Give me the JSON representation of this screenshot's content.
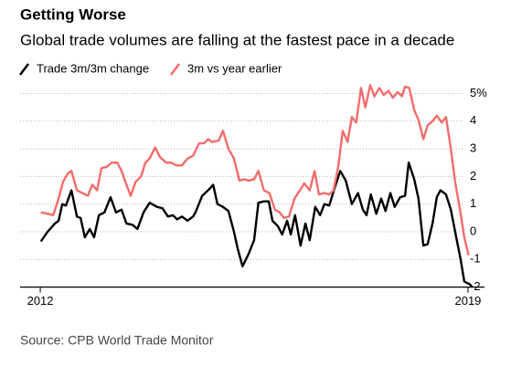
{
  "chart_data": {
    "type": "line",
    "title": "Getting Worse",
    "subtitle": "Global trade volumes are falling at the fastest pace in a decade",
    "source": "Source: CPB World Trade Monitor",
    "series": [
      {
        "name": "Trade 3m/3m change",
        "color": "#000000",
        "x": [
          2012.01,
          2012.12,
          2012.24,
          2012.3,
          2012.36,
          2012.42,
          2012.51,
          2012.6,
          2012.66,
          2012.73,
          2012.81,
          2012.88,
          2012.96,
          2013.05,
          2013.15,
          2013.24,
          2013.33,
          2013.41,
          2013.51,
          2013.59,
          2013.69,
          2013.79,
          2013.91,
          2014.0,
          2014.09,
          2014.17,
          2014.24,
          2014.32,
          2014.41,
          2014.5,
          2014.54,
          2014.65,
          2014.77,
          2014.83,
          2014.9,
          2014.99,
          2015.08,
          2015.17,
          2015.23,
          2015.31,
          2015.41,
          2015.5,
          2015.57,
          2015.66,
          2015.74,
          2015.8,
          2015.89,
          2015.96,
          2016.04,
          2016.1,
          2016.17,
          2016.26,
          2016.34,
          2016.41,
          2016.5,
          2016.58,
          2016.65,
          2016.73,
          2016.82,
          2016.91,
          2017.0,
          2017.1,
          2017.2,
          2017.28,
          2017.34,
          2017.41,
          2017.5,
          2017.58,
          2017.65,
          2017.73,
          2017.8,
          2017.89,
          2017.97,
          2018.03,
          2018.12,
          2018.19,
          2018.27,
          2018.34,
          2018.42,
          2018.49,
          2018.55,
          2018.64,
          2018.72,
          2018.79,
          2018.88,
          2018.94,
          2019.03,
          2019.07
        ],
        "values": [
          -0.35,
          0.0,
          0.3,
          0.4,
          1.0,
          0.95,
          1.5,
          0.55,
          0.5,
          -0.2,
          0.1,
          -0.2,
          0.6,
          0.7,
          1.25,
          0.7,
          0.8,
          0.3,
          0.25,
          0.1,
          0.7,
          1.05,
          0.9,
          0.85,
          0.55,
          0.6,
          0.45,
          0.55,
          0.4,
          0.55,
          0.7,
          1.3,
          1.55,
          1.7,
          1.0,
          0.9,
          0.75,
          0.0,
          -0.6,
          -1.25,
          -0.8,
          -0.3,
          1.05,
          1.1,
          1.1,
          0.4,
          0.2,
          -0.1,
          0.4,
          -0.1,
          0.6,
          -0.5,
          0.3,
          -0.3,
          0.9,
          0.6,
          1.0,
          0.95,
          1.6,
          2.2,
          1.85,
          1.0,
          1.4,
          0.8,
          0.6,
          1.35,
          0.65,
          1.2,
          0.75,
          1.4,
          0.9,
          1.25,
          1.3,
          2.5,
          1.9,
          1.2,
          -0.5,
          -0.45,
          0.3,
          1.25,
          1.5,
          1.35,
          0.8,
          0.0,
          -1.0,
          -1.8,
          -1.9,
          -2.0
        ]
      },
      {
        "name": "3m vs year earlier",
        "color": "#f26d6b",
        "x": [
          2012.01,
          2012.13,
          2012.21,
          2012.3,
          2012.37,
          2012.45,
          2012.51,
          2012.6,
          2012.69,
          2012.78,
          2012.85,
          2012.93,
          2013.0,
          2013.09,
          2013.17,
          2013.26,
          2013.33,
          2013.41,
          2013.48,
          2013.56,
          2013.65,
          2013.72,
          2013.79,
          2013.88,
          2013.96,
          2014.06,
          2014.14,
          2014.23,
          2014.32,
          2014.41,
          2014.5,
          2014.6,
          2014.68,
          2014.75,
          2014.81,
          2014.92,
          2014.99,
          2015.08,
          2015.17,
          2015.26,
          2015.34,
          2015.41,
          2015.5,
          2015.57,
          2015.66,
          2015.75,
          2015.84,
          2015.92,
          2015.99,
          2016.07,
          2016.16,
          2016.25,
          2016.32,
          2016.41,
          2016.49,
          2016.56,
          2016.65,
          2016.73,
          2016.8,
          2016.88,
          2016.95,
          2017.03,
          2017.1,
          2017.17,
          2017.25,
          2017.32,
          2017.4,
          2017.47,
          2017.55,
          2017.62,
          2017.7,
          2017.77,
          2017.85,
          2017.92,
          2017.97,
          2018.04,
          2018.12,
          2018.19,
          2018.27,
          2018.34,
          2018.42,
          2018.49,
          2018.57,
          2018.64,
          2018.72,
          2018.79,
          2018.87,
          2018.94,
          2019.01
        ],
        "values": [
          0.7,
          0.65,
          0.6,
          1.2,
          1.8,
          2.1,
          2.2,
          1.5,
          1.4,
          1.3,
          1.7,
          1.5,
          2.3,
          2.35,
          2.5,
          2.5,
          2.2,
          1.7,
          1.3,
          1.8,
          2.0,
          2.5,
          2.65,
          3.05,
          2.7,
          2.5,
          2.5,
          2.4,
          2.4,
          2.65,
          2.75,
          3.2,
          3.2,
          3.35,
          3.25,
          3.3,
          3.65,
          3.0,
          2.65,
          1.85,
          1.9,
          1.85,
          1.9,
          2.2,
          1.5,
          1.4,
          0.8,
          0.7,
          0.5,
          0.55,
          1.2,
          1.5,
          1.75,
          1.5,
          2.2,
          1.35,
          1.4,
          1.35,
          1.5,
          2.4,
          3.65,
          3.25,
          4.15,
          3.95,
          5.2,
          4.5,
          5.3,
          4.9,
          5.2,
          4.95,
          5.1,
          4.85,
          5.05,
          4.9,
          5.25,
          5.2,
          4.4,
          4.05,
          3.35,
          3.85,
          4.0,
          4.2,
          3.95,
          4.15,
          3.0,
          1.8,
          0.8,
          -0.2,
          -0.85
        ]
      }
    ],
    "xlim": [
      2011.67,
      2019.27
    ],
    "xticks": [
      2012,
      2019
    ],
    "ylim": [
      -2,
      5.3
    ],
    "yticks": [
      {
        "value": 5,
        "label": "5%"
      },
      4,
      3,
      2,
      1,
      0,
      -1,
      -2
    ],
    "grid": true
  }
}
